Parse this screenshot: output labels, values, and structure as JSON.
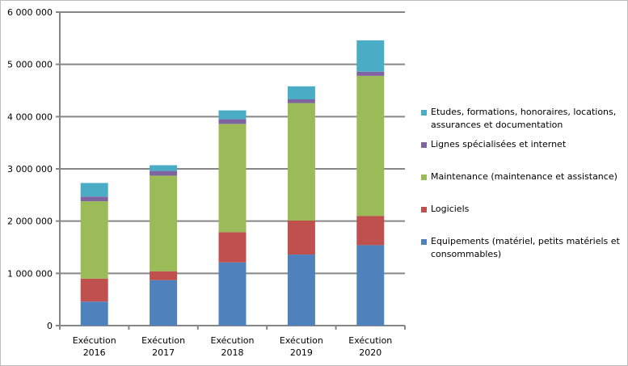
{
  "chart_data": {
    "type": "bar",
    "stacked": true,
    "title": "",
    "xlabel": "",
    "ylabel": "",
    "ylim": [
      0,
      6000000
    ],
    "yticks": [
      0,
      1000000,
      2000000,
      3000000,
      4000000,
      5000000,
      6000000
    ],
    "ytick_labels": [
      "0",
      "1 000 000",
      "2 000 000",
      "3 000 000",
      "4 000 000",
      "5 000 000",
      "6 000 000"
    ],
    "grid": true,
    "legend_position": "right",
    "categories": [
      [
        "Exécution",
        "2016"
      ],
      [
        "Exécution",
        "2017"
      ],
      [
        "Exécution",
        "2018"
      ],
      [
        "Exécution",
        "2019"
      ],
      [
        "Exécution",
        "2020"
      ]
    ],
    "series": [
      {
        "name": "Equipements (matériel, petits matériels et consommables)",
        "legend_lines": [
          "Equipements (matériel, petits matériels et",
          "consommables)"
        ],
        "color": "#4f81bd",
        "values": [
          460000,
          870000,
          1210000,
          1360000,
          1540000
        ]
      },
      {
        "name": "Logiciels",
        "legend_lines": [
          "Logiciels"
        ],
        "color": "#c0504d",
        "values": [
          440000,
          170000,
          580000,
          650000,
          560000
        ]
      },
      {
        "name": "Maintenance (maintenance et assistance)",
        "legend_lines": [
          "Maintenance (maintenance et assistance)"
        ],
        "color": "#9bbb59",
        "values": [
          1480000,
          1830000,
          2070000,
          2250000,
          2680000
        ]
      },
      {
        "name": "Lignes spécialisées et internet",
        "legend_lines": [
          "Lignes spécialisées et internet"
        ],
        "color": "#8064a2",
        "values": [
          90000,
          90000,
          90000,
          70000,
          80000
        ]
      },
      {
        "name": "Etudes, formations, honoraires, locations, assurances et documentation",
        "legend_lines": [
          "Etudes, formations, honoraires, locations,",
          "assurances et documentation"
        ],
        "color": "#4bacc6",
        "values": [
          260000,
          110000,
          170000,
          250000,
          600000
        ]
      }
    ]
  }
}
